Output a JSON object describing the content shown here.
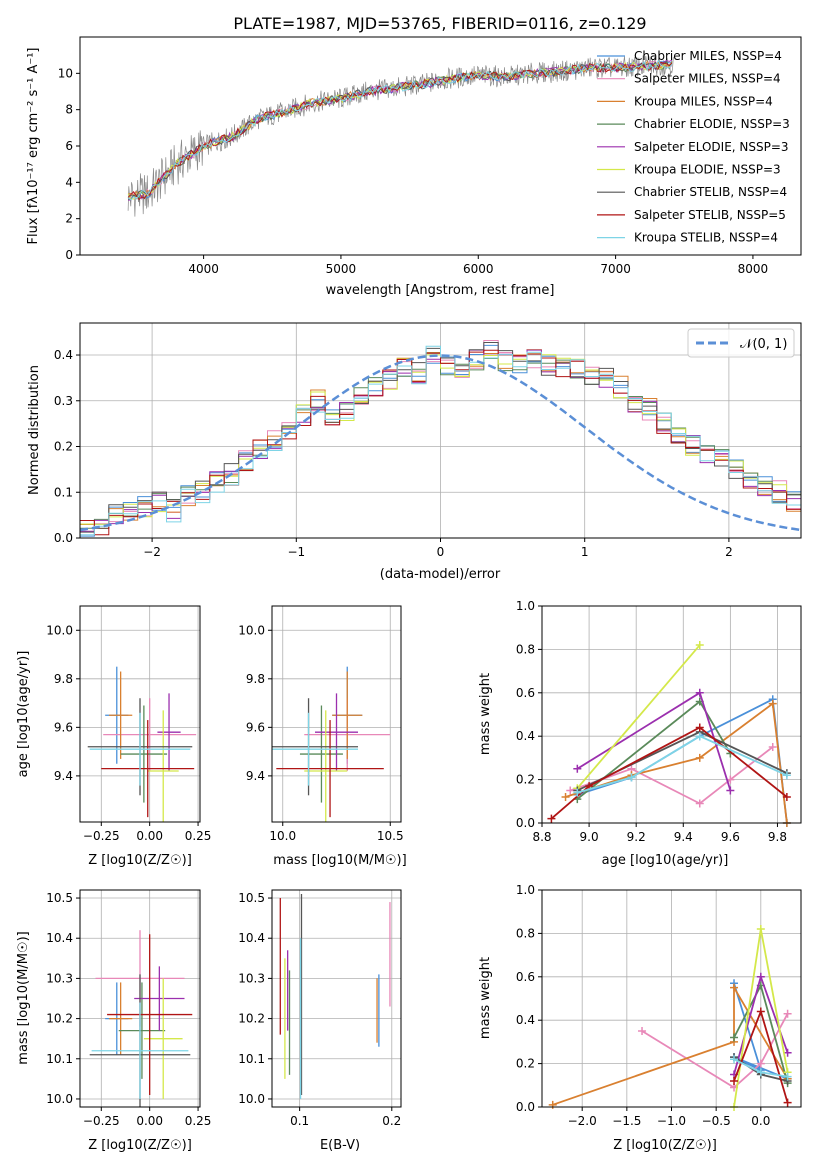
{
  "title": "PLATE=1987, MJD=53765, FIBERID=0116, z=0.129",
  "colors": {
    "chabrier_miles": "#4a90d9",
    "salpeter_miles": "#e888b8",
    "kroupa_miles": "#d98030",
    "chabrier_elodie": "#5a8a5a",
    "salpeter_elodie": "#9b2fae",
    "kroupa_elodie": "#d4e84a",
    "chabrier_stelib": "#555555",
    "salpeter_stelib": "#b01515",
    "kroupa_stelib": "#7ed4e6",
    "data": "#888888",
    "normal": "#5b8fd6"
  },
  "chart_data": [
    {
      "type": "line",
      "xlabel": "wavelength [Angstrom, rest frame]",
      "ylabel": "Flux [fλ10⁻¹⁷ erg cm⁻² s⁻¹ A⁻¹]",
      "xlim": [
        3100,
        8350
      ],
      "ylim": [
        0,
        12
      ],
      "xticks": [
        "4000",
        "5000",
        "6000",
        "7000",
        "8000"
      ],
      "yticks": [
        "0",
        "2",
        "4",
        "6",
        "8",
        "10"
      ],
      "grid": false,
      "legend_position": "top-right",
      "legend": [
        "Chabrier MILES, NSSP=4",
        "Salpeter MILES, NSSP=4",
        "Kroupa MILES, NSSP=4",
        "Chabrier ELODIE, NSSP=3",
        "Salpeter ELODIE, NSSP=3",
        "Kroupa ELODIE, NSSP=3",
        "Chabrier STELIB, NSSP=4",
        "Salpeter STELIB, NSSP=5",
        "Kroupa STELIB, NSSP=4"
      ],
      "x": [
        3450,
        3600,
        3800,
        4000,
        4200,
        4400,
        4600,
        4800,
        5000,
        5200,
        5400,
        5600,
        5800,
        6000,
        6200,
        6400,
        6600,
        6800,
        7000,
        7200,
        7400
      ],
      "y": [
        3.2,
        3.4,
        5.0,
        6.0,
        6.5,
        7.5,
        7.9,
        8.4,
        8.6,
        9.0,
        9.2,
        9.4,
        9.7,
        9.9,
        9.8,
        10.0,
        10.1,
        10.3,
        10.3,
        10.4,
        10.5
      ]
    },
    {
      "type": "line",
      "xlabel": "(data-model)/error",
      "ylabel": "Normed distribution",
      "xlim": [
        -2.5,
        2.5
      ],
      "ylim": [
        0,
        0.47
      ],
      "xticks": [
        "−2",
        "−1",
        "0",
        "1",
        "2"
      ],
      "yticks": [
        "0.0",
        "0.1",
        "0.2",
        "0.3",
        "0.4"
      ],
      "grid": true,
      "legend_position": "top-right",
      "legend": [
        "𝒩(0, 1)"
      ],
      "bin_width": 0.1,
      "bin_start": -2.5,
      "values": [
        0.02,
        0.03,
        0.05,
        0.06,
        0.07,
        0.08,
        0.06,
        0.09,
        0.1,
        0.12,
        0.14,
        0.17,
        0.19,
        0.21,
        0.24,
        0.27,
        0.3,
        0.26,
        0.28,
        0.31,
        0.33,
        0.35,
        0.37,
        0.36,
        0.4,
        0.38,
        0.37,
        0.39,
        0.41,
        0.39,
        0.38,
        0.39,
        0.38,
        0.37,
        0.37,
        0.36,
        0.35,
        0.33,
        0.3,
        0.28,
        0.25,
        0.22,
        0.2,
        0.18,
        0.17,
        0.15,
        0.13,
        0.11,
        0.1,
        0.08,
        0.07,
        0.06,
        0.05,
        0.05,
        0.04,
        0.04,
        0.03,
        0.03,
        0.02,
        0.02
      ]
    },
    {
      "type": "scatter",
      "xlabel": "Z [log10(Z/Z☉)]",
      "ylabel": "age [log10(age/yr)]",
      "xlim": [
        -0.36,
        0.26
      ],
      "ylim": [
        9.21,
        10.1
      ],
      "xticks": [
        "−0.25",
        "0.00",
        "0.25"
      ],
      "yticks": [
        "9.4",
        "9.6",
        "9.8",
        "10.0"
      ],
      "grid": true,
      "points": [
        {
          "model": "chabrier_miles",
          "x": -0.17,
          "xerr": 0.06,
          "y": 9.65,
          "yerr": 0.2
        },
        {
          "model": "salpeter_miles",
          "x": 0.0,
          "xerr": 0.24,
          "y": 9.57,
          "yerr": 0.15
        },
        {
          "model": "kroupa_miles",
          "x": -0.15,
          "xerr": 0.06,
          "y": 9.65,
          "yerr": 0.18
        },
        {
          "model": "chabrier_elodie",
          "x": -0.03,
          "xerr": 0.12,
          "y": 9.49,
          "yerr": 0.2
        },
        {
          "model": "salpeter_elodie",
          "x": 0.1,
          "xerr": 0.06,
          "y": 9.58,
          "yerr": 0.16
        },
        {
          "model": "kroupa_elodie",
          "x": 0.07,
          "xerr": 0.08,
          "y": 9.42,
          "yerr": 0.25
        },
        {
          "model": "chabrier_stelib",
          "x": -0.05,
          "xerr": 0.27,
          "y": 9.52,
          "yerr": 0.2
        },
        {
          "model": "salpeter_stelib",
          "x": -0.01,
          "xerr": 0.24,
          "y": 9.43,
          "yerr": 0.2
        },
        {
          "model": "kroupa_stelib",
          "x": -0.05,
          "xerr": 0.26,
          "y": 9.51,
          "yerr": 0.15
        }
      ]
    },
    {
      "type": "scatter",
      "xlabel": "mass [log10(M/M☉)]",
      "ylabel": "",
      "xlim": [
        9.95,
        10.55
      ],
      "ylim": [
        9.21,
        10.1
      ],
      "xticks": [
        "10.0",
        "10.5"
      ],
      "yticks": [
        "9.4",
        "9.6",
        "9.8",
        "10.0"
      ],
      "grid": true,
      "points": [
        {
          "model": "chabrier_miles",
          "x": 10.3,
          "xerr": 0.07,
          "y": 9.65,
          "yerr": 0.2
        },
        {
          "model": "salpeter_miles",
          "x": 10.3,
          "xerr": 0.2,
          "y": 9.57,
          "yerr": 0.15
        },
        {
          "model": "kroupa_miles",
          "x": 10.3,
          "xerr": 0.07,
          "y": 9.65,
          "yerr": 0.18
        },
        {
          "model": "chabrier_elodie",
          "x": 10.18,
          "xerr": 0.1,
          "y": 9.49,
          "yerr": 0.2
        },
        {
          "model": "salpeter_elodie",
          "x": 10.25,
          "xerr": 0.1,
          "y": 9.58,
          "yerr": 0.16
        },
        {
          "model": "kroupa_elodie",
          "x": 10.2,
          "xerr": 0.1,
          "y": 9.42,
          "yerr": 0.25
        },
        {
          "model": "chabrier_stelib",
          "x": 10.12,
          "xerr": 0.23,
          "y": 9.52,
          "yerr": 0.2
        },
        {
          "model": "salpeter_stelib",
          "x": 10.22,
          "xerr": 0.25,
          "y": 9.43,
          "yerr": 0.2
        },
        {
          "model": "kroupa_stelib",
          "x": 10.12,
          "xerr": 0.23,
          "y": 9.51,
          "yerr": 0.15
        }
      ]
    },
    {
      "type": "line",
      "xlabel": "age [log10(age/yr)]",
      "ylabel": "mass weight",
      "xlim": [
        8.8,
        9.9
      ],
      "ylim": [
        0,
        1.0
      ],
      "xticks": [
        "8.8",
        "9.0",
        "9.2",
        "9.4",
        "9.6",
        "9.8"
      ],
      "yticks": [
        "0.0",
        "0.2",
        "0.4",
        "0.6",
        "0.8",
        "1.0"
      ],
      "grid": true,
      "series": [
        {
          "model": "chabrier_miles",
          "x": [
            8.95,
            9.18,
            9.47,
            9.78,
            9.84
          ],
          "y": [
            0.13,
            0.21,
            0.4,
            0.57,
            0.0
          ]
        },
        {
          "model": "salpeter_miles",
          "x": [
            8.92,
            9.18,
            9.47,
            9.6,
            9.78
          ],
          "y": [
            0.15,
            0.25,
            0.09,
            0.2,
            0.35
          ]
        },
        {
          "model": "kroupa_miles",
          "x": [
            8.9,
            9.18,
            9.47,
            9.78,
            9.84
          ],
          "y": [
            0.12,
            0.22,
            0.3,
            0.55,
            0.0
          ]
        },
        {
          "model": "chabrier_elodie",
          "x": [
            8.95,
            9.47,
            9.6
          ],
          "y": [
            0.11,
            0.56,
            0.32
          ]
        },
        {
          "model": "salpeter_elodie",
          "x": [
            8.95,
            9.47,
            9.6
          ],
          "y": [
            0.25,
            0.6,
            0.15
          ]
        },
        {
          "model": "kroupa_elodie",
          "x": [
            8.95,
            9.47
          ],
          "y": [
            0.16,
            0.82
          ]
        },
        {
          "model": "chabrier_stelib",
          "x": [
            8.95,
            9.47,
            9.84
          ],
          "y": [
            0.15,
            0.42,
            0.23
          ]
        },
        {
          "model": "salpeter_stelib",
          "x": [
            8.84,
            9.0,
            9.47,
            9.84
          ],
          "y": [
            0.02,
            0.17,
            0.44,
            0.12
          ]
        },
        {
          "model": "kroupa_stelib",
          "x": [
            8.95,
            9.18,
            9.47,
            9.84
          ],
          "y": [
            0.14,
            0.21,
            0.4,
            0.22
          ]
        }
      ]
    },
    {
      "type": "scatter",
      "xlabel": "Z [log10(Z/Z☉)]",
      "ylabel": "mass [log10(M/M☉)]",
      "xlim": [
        -0.36,
        0.26
      ],
      "ylim": [
        9.98,
        10.52
      ],
      "xticks": [
        "−0.25",
        "0.00",
        "0.25"
      ],
      "yticks": [
        "10.0",
        "10.1",
        "10.2",
        "10.3",
        "10.4",
        "10.5"
      ],
      "grid": true,
      "points": [
        {
          "model": "chabrier_miles",
          "x": -0.17,
          "xerr": 0.06,
          "y": 10.2,
          "yerr": 0.09
        },
        {
          "model": "salpeter_miles",
          "x": -0.05,
          "xerr": 0.23,
          "y": 10.3,
          "yerr": 0.12
        },
        {
          "model": "kroupa_miles",
          "x": -0.15,
          "xerr": 0.06,
          "y": 10.2,
          "yerr": 0.09
        },
        {
          "model": "chabrier_elodie",
          "x": -0.04,
          "xerr": 0.12,
          "y": 10.17,
          "yerr": 0.12
        },
        {
          "model": "salpeter_elodie",
          "x": 0.05,
          "xerr": 0.13,
          "y": 10.25,
          "yerr": 0.08
        },
        {
          "model": "kroupa_elodie",
          "x": 0.07,
          "xerr": 0.1,
          "y": 10.15,
          "yerr": 0.15
        },
        {
          "model": "chabrier_stelib",
          "x": -0.05,
          "xerr": 0.26,
          "y": 10.11,
          "yerr": 0.2
        },
        {
          "model": "salpeter_stelib",
          "x": 0.0,
          "xerr": 0.22,
          "y": 10.21,
          "yerr": 0.2
        },
        {
          "model": "kroupa_stelib",
          "x": -0.05,
          "xerr": 0.25,
          "y": 10.12,
          "yerr": 0.12
        }
      ]
    },
    {
      "type": "scatter",
      "xlabel": "E(B-V)",
      "ylabel": "",
      "xlim": [
        0.07,
        0.21
      ],
      "ylim": [
        9.98,
        10.52
      ],
      "xticks": [
        "0.1",
        "0.2"
      ],
      "yticks": [
        "10.0",
        "10.1",
        "10.2",
        "10.3",
        "10.4",
        "10.5"
      ],
      "grid": true,
      "points": [
        {
          "model": "chabrier_miles",
          "x": 0.186,
          "y": 10.22,
          "yerr": 0.09
        },
        {
          "model": "salpeter_miles",
          "x": 0.198,
          "y": 10.36,
          "yerr": 0.13
        },
        {
          "model": "kroupa_miles",
          "x": 0.184,
          "y": 10.22,
          "yerr": 0.08
        },
        {
          "model": "chabrier_elodie",
          "x": 0.089,
          "y": 10.19,
          "yerr": 0.13
        },
        {
          "model": "salpeter_elodie",
          "x": 0.087,
          "y": 10.27,
          "yerr": 0.1
        },
        {
          "model": "kroupa_elodie",
          "x": 0.084,
          "y": 10.2,
          "yerr": 0.15
        },
        {
          "model": "chabrier_stelib",
          "x": 0.102,
          "y": 10.26,
          "yerr": 0.25
        },
        {
          "model": "salpeter_stelib",
          "x": 0.079,
          "y": 10.33,
          "yerr": 0.17
        },
        {
          "model": "kroupa_stelib",
          "x": 0.101,
          "y": 10.2,
          "yerr": 0.2
        }
      ]
    },
    {
      "type": "line",
      "xlabel": "Z [log10(Z/Z☉)]",
      "ylabel": "mass weight",
      "xlim": [
        -2.45,
        0.45
      ],
      "ylim": [
        0,
        1.0
      ],
      "xticks": [
        "−2.0",
        "−1.5",
        "−1.0",
        "−0.5",
        "0.0"
      ],
      "yticks": [
        "0.0",
        "0.2",
        "0.4",
        "0.6",
        "0.8",
        "1.0"
      ],
      "grid": true,
      "series": [
        {
          "model": "chabrier_miles",
          "x": [
            -0.3,
            0.0,
            -0.3,
            0.3
          ],
          "y": [
            0.57,
            0.17,
            0.23,
            0.13
          ]
        },
        {
          "model": "salpeter_miles",
          "x": [
            -1.33,
            -0.3,
            0.0,
            0.3
          ],
          "y": [
            0.35,
            0.09,
            0.2,
            0.43
          ]
        },
        {
          "model": "kroupa_miles",
          "x": [
            -2.33,
            -0.3,
            -0.3,
            0.3
          ],
          "y": [
            0.01,
            0.3,
            0.55,
            0.13
          ]
        },
        {
          "model": "chabrier_elodie",
          "x": [
            -0.3,
            0.0,
            0.3
          ],
          "y": [
            0.32,
            0.56,
            0.11
          ]
        },
        {
          "model": "salpeter_elodie",
          "x": [
            -0.3,
            0.0,
            0.3
          ],
          "y": [
            0.15,
            0.6,
            0.25
          ]
        },
        {
          "model": "kroupa_elodie",
          "x": [
            -0.3,
            0.0,
            0.3
          ],
          "y": [
            0.0,
            0.82,
            0.16
          ]
        },
        {
          "model": "chabrier_stelib",
          "x": [
            -0.3,
            0.0,
            0.3
          ],
          "y": [
            0.23,
            0.15,
            0.12
          ]
        },
        {
          "model": "salpeter_stelib",
          "x": [
            -0.3,
            0.0,
            0.3
          ],
          "y": [
            0.12,
            0.44,
            0.02
          ]
        },
        {
          "model": "kroupa_stelib",
          "x": [
            -0.3,
            0.0,
            0.3
          ],
          "y": [
            0.22,
            0.16,
            0.14
          ]
        }
      ]
    }
  ]
}
